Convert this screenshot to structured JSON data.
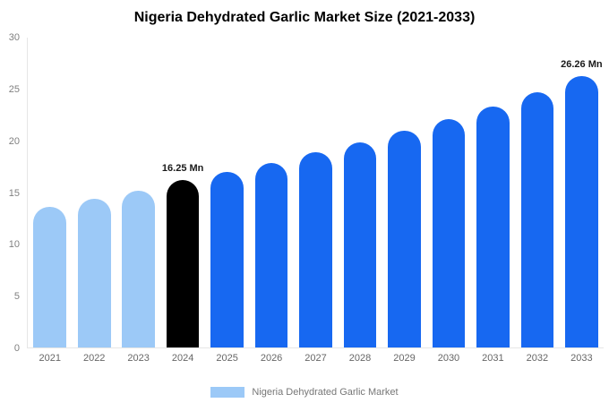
{
  "chart_data": {
    "type": "bar",
    "title": "Nigeria Dehydrated Garlic Market Size (2021-2033)",
    "categories": [
      "2021",
      "2022",
      "2023",
      "2024",
      "2025",
      "2026",
      "2027",
      "2028",
      "2029",
      "2030",
      "2031",
      "2032",
      "2033"
    ],
    "values": [
      13.6,
      14.4,
      15.2,
      16.25,
      17.0,
      17.9,
      18.9,
      19.9,
      21.0,
      22.15,
      23.35,
      24.7,
      26.26
    ],
    "bar_colors": [
      "#9CC9F7",
      "#9CC9F7",
      "#9CC9F7",
      "#000000",
      "#1768F1",
      "#1768F1",
      "#1768F1",
      "#1768F1",
      "#1768F1",
      "#1768F1",
      "#1768F1",
      "#1768F1",
      "#1768F1"
    ],
    "xlabel": "",
    "ylabel": "",
    "ylim": [
      0,
      30
    ],
    "ytick_step": 5,
    "grid": false,
    "annotations": [
      {
        "category": "2024",
        "text": "16.25 Mn"
      },
      {
        "category": "2033",
        "text": "26.26 Mn"
      }
    ],
    "legend": [
      {
        "label": "Nigeria Dehydrated Garlic Market",
        "swatch": "#9CC9F7"
      }
    ],
    "legend_position": "bottom"
  }
}
